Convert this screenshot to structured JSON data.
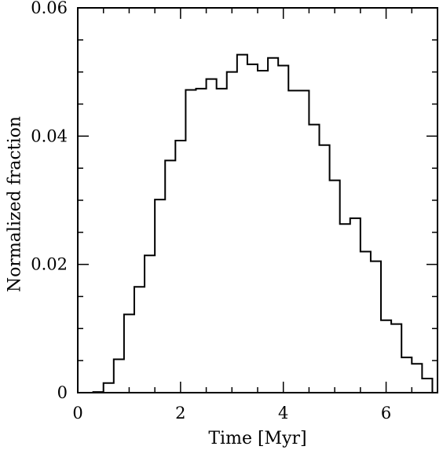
{
  "chart_data": {
    "type": "bar",
    "style": "step-histogram",
    "xlabel": "Time [Myr]",
    "ylabel": "Normalized fraction",
    "xlim": [
      0,
      7
    ],
    "ylim": [
      0,
      0.06
    ],
    "x_ticks": [
      0,
      2,
      4,
      6
    ],
    "x_tick_labels": [
      "0",
      "2",
      "4",
      "6"
    ],
    "y_ticks": [
      0,
      0.02,
      0.04,
      0.06
    ],
    "y_tick_labels": [
      "0",
      "0.02",
      "0.04",
      "0.06"
    ],
    "grid": false,
    "bin_width": 0.2,
    "bin_edges": [
      0.3,
      0.5,
      0.7,
      0.9,
      1.1,
      1.3,
      1.5,
      1.7,
      1.9,
      2.1,
      2.3,
      2.5,
      2.7,
      2.9,
      3.1,
      3.3,
      3.5,
      3.7,
      3.9,
      4.1,
      4.3,
      4.5,
      4.7,
      4.9,
      5.1,
      5.3,
      5.5,
      5.7,
      5.9,
      6.1,
      6.3,
      6.5,
      6.7,
      6.9
    ],
    "values": [
      0.0001,
      0.0015,
      0.0052,
      0.0122,
      0.0165,
      0.0214,
      0.0301,
      0.0362,
      0.0393,
      0.0472,
      0.0474,
      0.0489,
      0.0474,
      0.05,
      0.0527,
      0.0512,
      0.0502,
      0.0522,
      0.051,
      0.0471,
      0.0471,
      0.0418,
      0.0386,
      0.0331,
      0.0263,
      0.0272,
      0.022,
      0.0205,
      0.0113,
      0.0107,
      0.0055,
      0.0045,
      0.0022
    ]
  }
}
